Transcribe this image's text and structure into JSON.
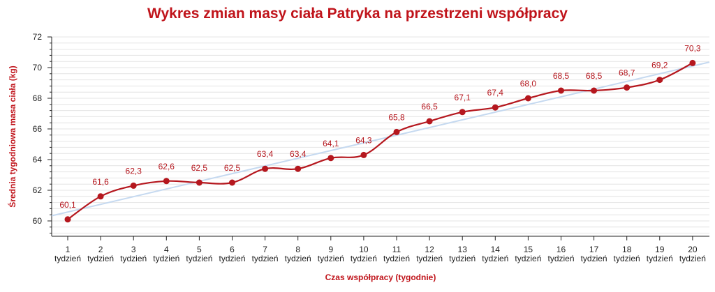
{
  "chart_data": {
    "type": "line",
    "title": "Wykres zmian masy ciała Patryka na przestrzeni współpracy",
    "xlabel": "Czas współpracy (tygodnie)",
    "ylabel": "Średnia tygodniowa masa ciała (kg)",
    "categories": [
      "1",
      "2",
      "3",
      "4",
      "5",
      "6",
      "7",
      "8",
      "9",
      "10",
      "11",
      "12",
      "13",
      "14",
      "15",
      "16",
      "17",
      "18",
      "19",
      "20"
    ],
    "category_sublabel": "tydzień",
    "series": [
      {
        "values": [
          60.1,
          61.6,
          62.3,
          62.6,
          62.5,
          62.5,
          63.4,
          63.4,
          64.1,
          64.3,
          65.8,
          66.5,
          67.1,
          67.4,
          68.0,
          68.5,
          68.5,
          68.7,
          69.2,
          70.3
        ],
        "data_labels": [
          "60,1",
          "61,6",
          "62,3",
          "62,6",
          "62,5",
          "62,5",
          "63,4",
          "63,4",
          "64,1",
          "64,3",
          "65,8",
          "66,5",
          "67,1",
          "67,4",
          "68,0",
          "68,5",
          "68,5",
          "68,7",
          "69,2",
          "70,3"
        ]
      }
    ],
    "trendline": true,
    "yticks": [
      60,
      62,
      64,
      66,
      68,
      70,
      72
    ],
    "ylim": [
      59.2,
      72
    ],
    "grid": true,
    "legend": "none",
    "colors": {
      "line": "#b5171e",
      "title": "#c0141b",
      "trend": "#c5d9f0",
      "grid": "#e4e4e4",
      "axis": "#222222"
    }
  }
}
